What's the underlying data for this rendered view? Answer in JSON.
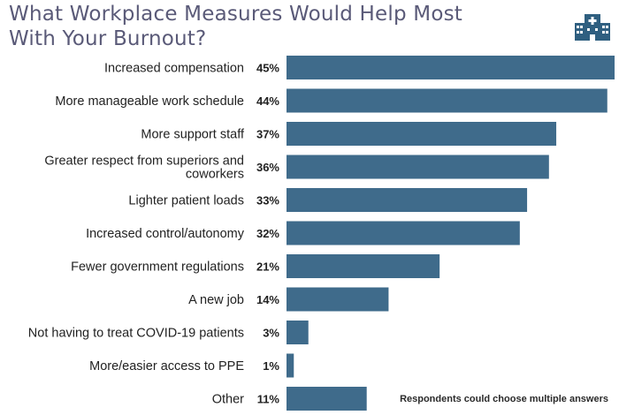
{
  "header": {
    "title": "What Workplace Measures Would Help Most With Your Burnout?",
    "icon": "hospital-icon"
  },
  "colors": {
    "bar": "#3f6b8b",
    "title": "#5a5a78",
    "icon": "#2f5f80"
  },
  "note": "Respondents could choose multiple answers",
  "chart_data": {
    "type": "bar",
    "orientation": "horizontal",
    "title": "What Workplace Measures Would Help Most With Your Burnout?",
    "xlabel": "",
    "ylabel": "",
    "xlim": [
      0,
      45
    ],
    "categories": [
      "Increased compensation",
      "More manageable work schedule",
      "More support staff",
      "Greater respect from superiors and coworkers",
      "Lighter patient loads",
      "Increased control/autonomy",
      "Fewer government regulations",
      "A new job",
      "Not having to treat COVID-19 patients",
      "More/easier access to PPE",
      "Other"
    ],
    "category_lines": [
      [
        "Increased compensation"
      ],
      [
        "More manageable work schedule"
      ],
      [
        "More support staff"
      ],
      [
        "Greater respect from superiors and",
        "coworkers"
      ],
      [
        "Lighter patient loads"
      ],
      [
        "Increased control/autonomy"
      ],
      [
        "Fewer government regulations"
      ],
      [
        "A new job"
      ],
      [
        "Not having to treat COVID-19 patients"
      ],
      [
        "More/easier access to PPE"
      ],
      [
        "Other"
      ]
    ],
    "values": [
      45,
      44,
      37,
      36,
      33,
      32,
      21,
      14,
      3,
      1,
      11
    ],
    "value_labels": [
      "45%",
      "44%",
      "37%",
      "36%",
      "33%",
      "32%",
      "21%",
      "14%",
      "3%",
      "1%",
      "11%"
    ],
    "note": "Respondents could choose multiple answers"
  }
}
